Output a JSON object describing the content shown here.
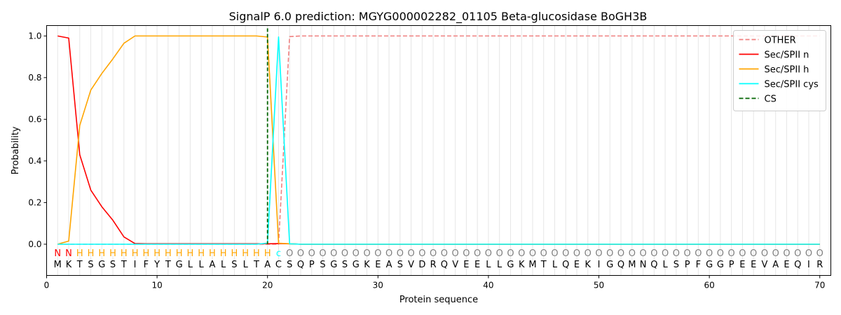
{
  "chart_data": {
    "type": "line",
    "title": "SignalP 6.0 prediction: MGYG000002282_01105 Beta-glucosidase BoGH3B",
    "xlabel": "Protein sequence",
    "ylabel": "Probability",
    "xlim": [
      0,
      71
    ],
    "ylim": [
      -0.15,
      1.05
    ],
    "xticks": [
      0,
      10,
      20,
      30,
      40,
      50,
      60,
      70
    ],
    "yticks": [
      0.0,
      0.2,
      0.4,
      0.6,
      0.8,
      1.0
    ],
    "xtick_labels": [
      "0",
      "10",
      "20",
      "30",
      "40",
      "50",
      "60",
      "70"
    ],
    "ytick_labels": [
      "0.0",
      "0.2",
      "0.4",
      "0.6",
      "0.8",
      "1.0"
    ],
    "grid": "vertical lines at each residue",
    "legend_position": "top-right",
    "sequence": [
      "M",
      "K",
      "T",
      "S",
      "G",
      "S",
      "T",
      "I",
      "F",
      "Y",
      "T",
      "G",
      "L",
      "L",
      "A",
      "L",
      "S",
      "L",
      "T",
      "A",
      "C",
      "S",
      "Q",
      "P",
      "S",
      "G",
      "S",
      "G",
      "K",
      "E",
      "A",
      "S",
      "V",
      "D",
      "R",
      "Q",
      "V",
      "E",
      "E",
      "L",
      "L",
      "G",
      "K",
      "M",
      "T",
      "L",
      "Q",
      "E",
      "K",
      "I",
      "G",
      "Q",
      "M",
      "N",
      "Q",
      "L",
      "S",
      "P",
      "F",
      "G",
      "G",
      "P",
      "E",
      "E",
      "V",
      "A",
      "E",
      "Q",
      "I",
      "R"
    ],
    "labels": [
      "N",
      "N",
      "H",
      "H",
      "H",
      "H",
      "H",
      "H",
      "H",
      "H",
      "H",
      "H",
      "H",
      "H",
      "H",
      "H",
      "H",
      "H",
      "H",
      "H",
      "c",
      "O",
      "O",
      "O",
      "O",
      "O",
      "O",
      "O",
      "O",
      "O",
      "O",
      "O",
      "O",
      "O",
      "O",
      "O",
      "O",
      "O",
      "O",
      "O",
      "O",
      "O",
      "O",
      "O",
      "O",
      "O",
      "O",
      "O",
      "O",
      "O",
      "O",
      "O",
      "O",
      "O",
      "O",
      "O",
      "O",
      "O",
      "O",
      "O",
      "O",
      "O",
      "O",
      "O",
      "O",
      "O",
      "O",
      "O",
      "O",
      "O"
    ],
    "label_colors": {
      "N": "#ff0000",
      "H": "#ffa500",
      "c": "#00ffff",
      "O": "#808080"
    },
    "series": [
      {
        "name": "OTHER",
        "color": "#f08080",
        "style": "dashed",
        "values": [
          0,
          0,
          0,
          0,
          0,
          0,
          0,
          0,
          0,
          0,
          0,
          0,
          0,
          0,
          0,
          0,
          0,
          0,
          0,
          0,
          0,
          0.997,
          1,
          1,
          1,
          1,
          1,
          1,
          1,
          1,
          1,
          1,
          1,
          1,
          1,
          1,
          1,
          1,
          1,
          1,
          1,
          1,
          1,
          1,
          1,
          1,
          1,
          1,
          1,
          1,
          1,
          1,
          1,
          1,
          1,
          1,
          1,
          1,
          1,
          1,
          1,
          1,
          1,
          1,
          1,
          1,
          1,
          1,
          1,
          1
        ]
      },
      {
        "name": "Sec/SPII n",
        "color": "#ff0000",
        "style": "solid",
        "values": [
          1.0,
          0.99,
          0.43,
          0.26,
          0.18,
          0.115,
          0.035,
          0.003,
          0.002,
          0.002,
          0.002,
          0.002,
          0.002,
          0.002,
          0.002,
          0.002,
          0.002,
          0.002,
          0.002,
          0.002,
          0.003,
          0.002,
          0,
          0,
          0,
          0,
          0,
          0,
          0,
          0,
          0,
          0,
          0,
          0,
          0,
          0,
          0,
          0,
          0,
          0,
          0,
          0,
          0,
          0,
          0,
          0,
          0,
          0,
          0,
          0,
          0,
          0,
          0,
          0,
          0,
          0,
          0,
          0,
          0,
          0,
          0,
          0,
          0,
          0,
          0,
          0,
          0,
          0,
          0,
          0
        ]
      },
      {
        "name": "Sec/SPII h",
        "color": "#ffa500",
        "style": "solid",
        "values": [
          0.0,
          0.015,
          0.57,
          0.74,
          0.82,
          0.89,
          0.965,
          1.0,
          1.0,
          1.0,
          1.0,
          1.0,
          1.0,
          1.0,
          1.0,
          1.0,
          1.0,
          1.0,
          1.0,
          0.995,
          0.005,
          0.002,
          0,
          0,
          0,
          0,
          0,
          0,
          0,
          0,
          0,
          0,
          0,
          0,
          0,
          0,
          0,
          0,
          0,
          0,
          0,
          0,
          0,
          0,
          0,
          0,
          0,
          0,
          0,
          0,
          0,
          0,
          0,
          0,
          0,
          0,
          0,
          0,
          0,
          0,
          0,
          0,
          0,
          0,
          0,
          0,
          0,
          0,
          0,
          0
        ]
      },
      {
        "name": "Sec/SPII cys",
        "color": "#00ffff",
        "style": "solid",
        "values": [
          0,
          0,
          0,
          0,
          0,
          0,
          0,
          0,
          0,
          0,
          0,
          0,
          0,
          0,
          0,
          0,
          0,
          0,
          0,
          0.005,
          0.995,
          0.002,
          0,
          0,
          0,
          0,
          0,
          0,
          0,
          0,
          0,
          0,
          0,
          0,
          0,
          0,
          0,
          0,
          0,
          0,
          0,
          0,
          0,
          0,
          0,
          0,
          0,
          0,
          0,
          0,
          0,
          0,
          0,
          0,
          0,
          0,
          0,
          0,
          0,
          0,
          0,
          0,
          0,
          0,
          0,
          0,
          0,
          0,
          0,
          0
        ]
      },
      {
        "name": "CS",
        "color": "#006400",
        "style": "dashed",
        "vline_x": 20
      }
    ]
  }
}
